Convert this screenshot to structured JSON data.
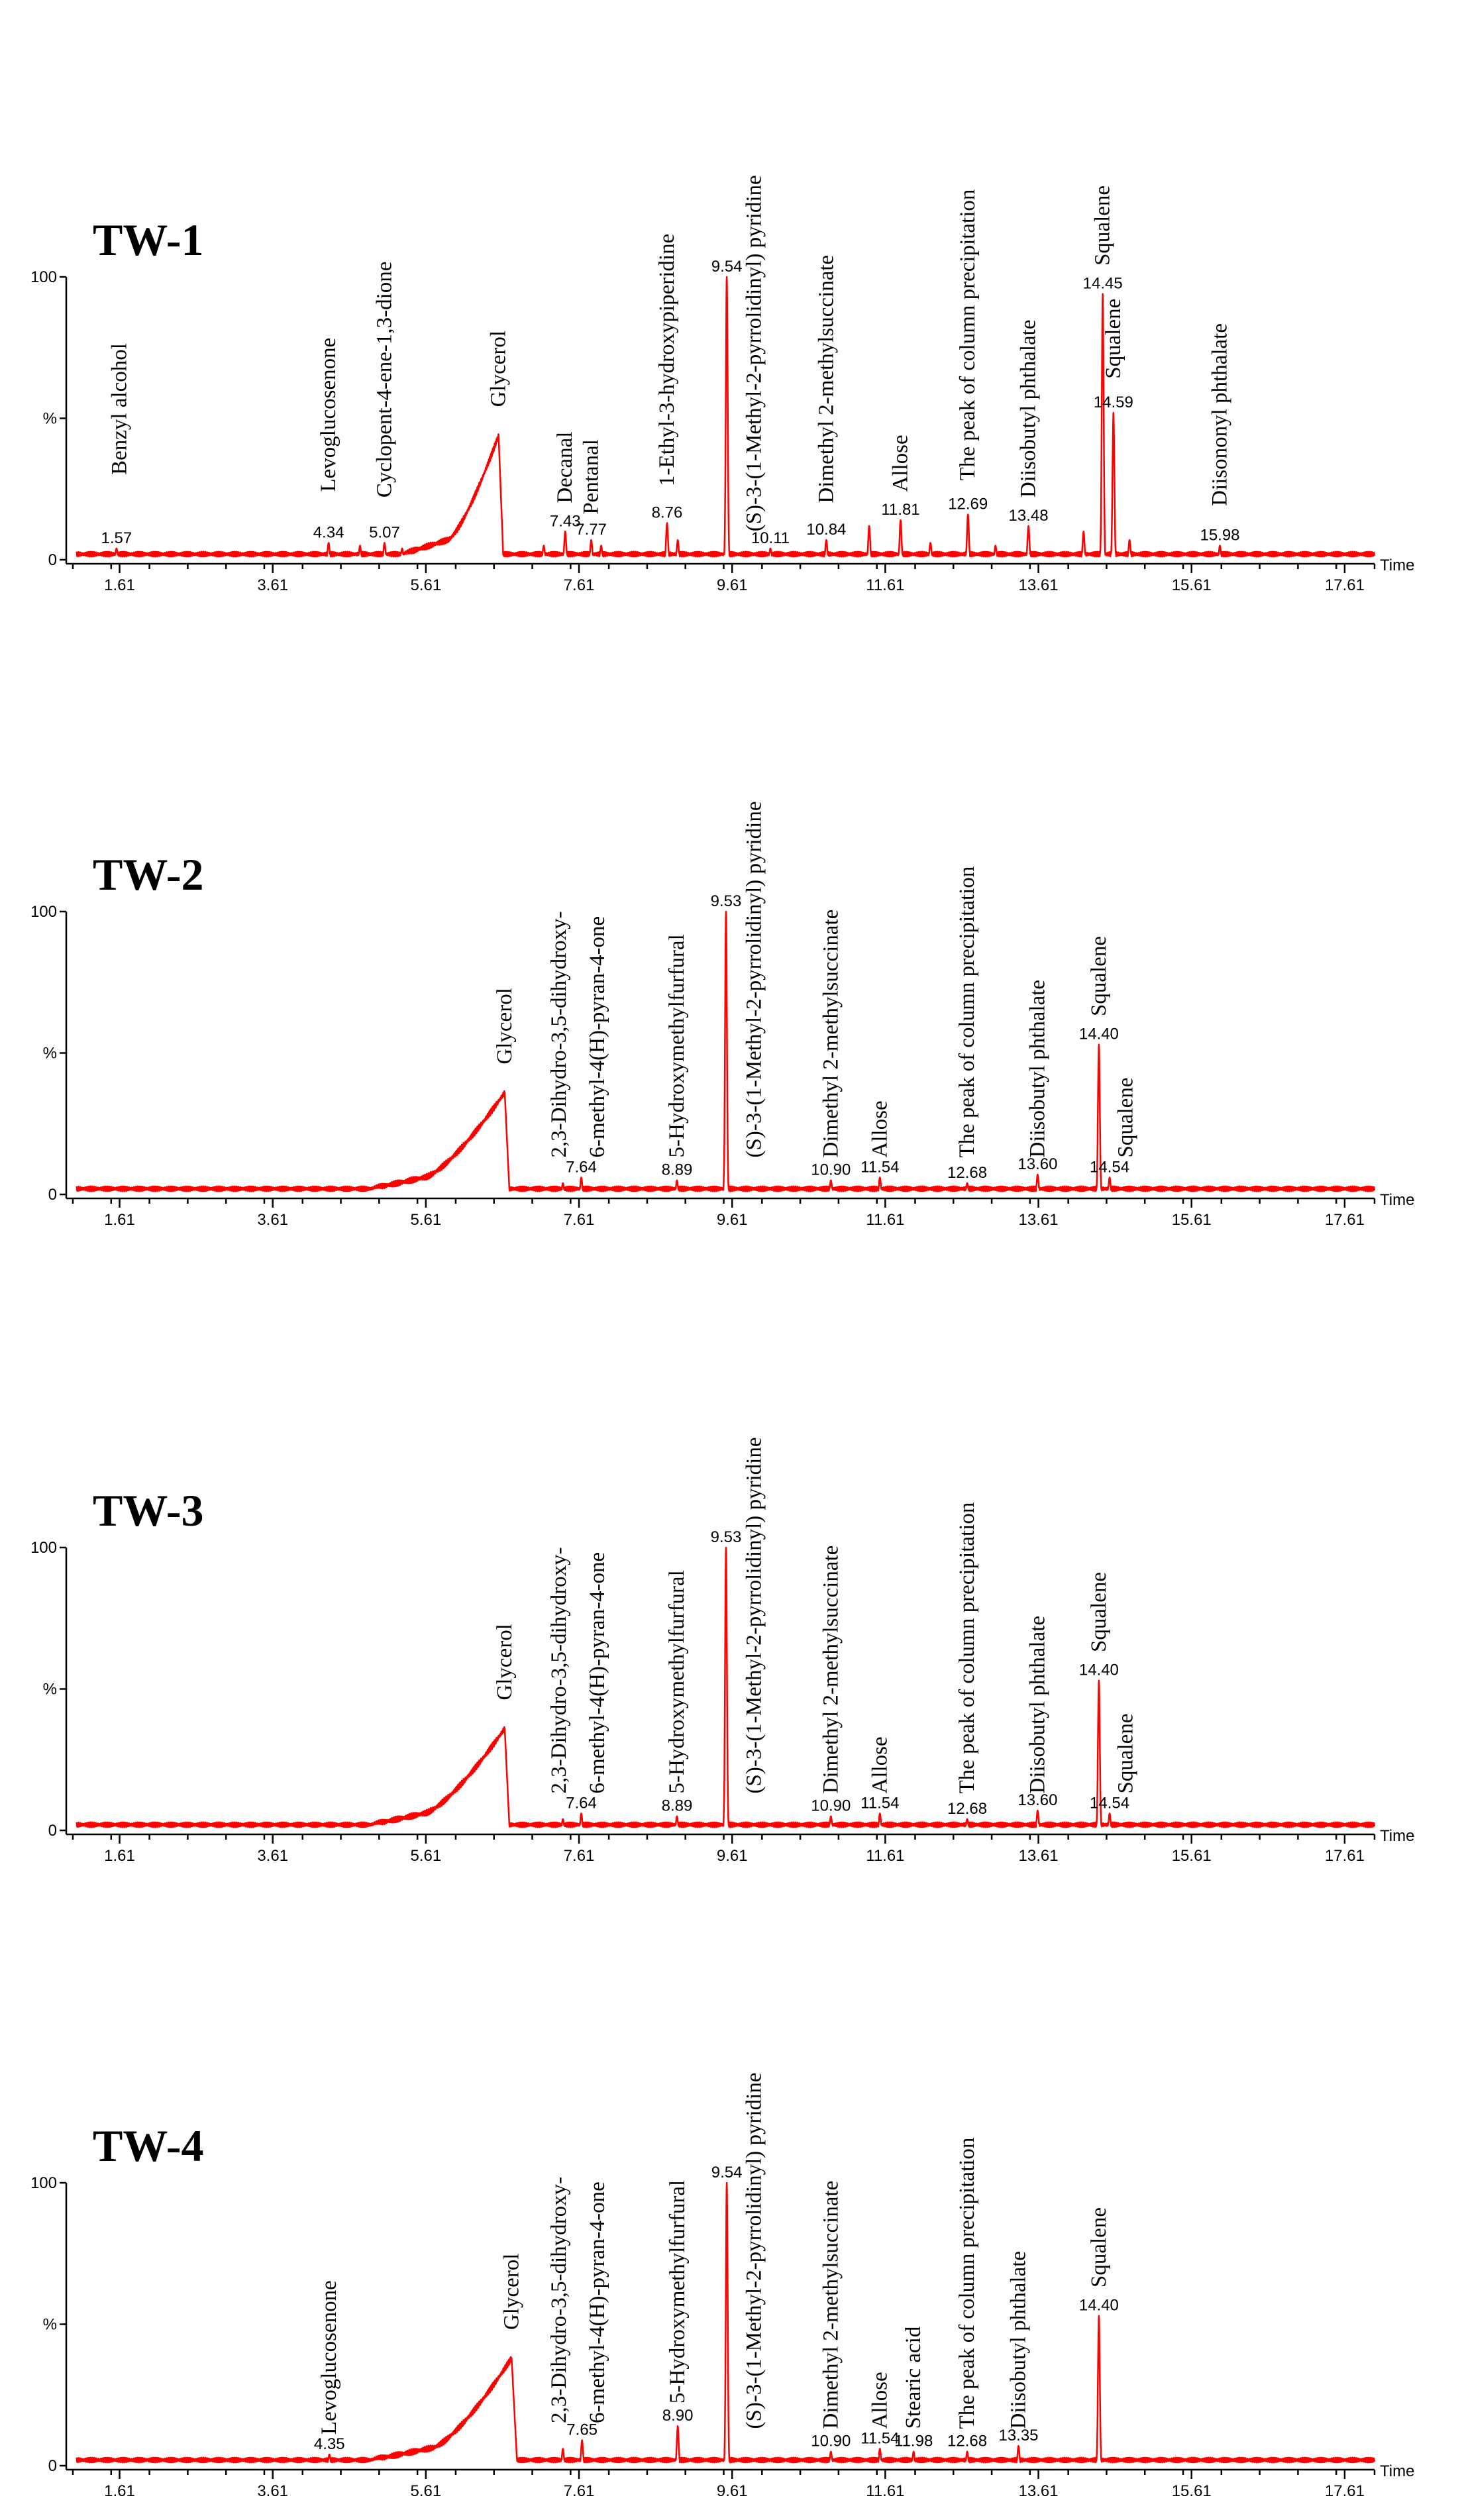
{
  "chart_data": [
    {
      "type": "line",
      "title": "TW-1",
      "xlabel": "Time",
      "xlim": [
        1.0,
        18.0
      ],
      "ylim": [
        0,
        100
      ],
      "y_tick_labels": [
        "0",
        "%",
        "100"
      ],
      "x_ticks": [
        1.61,
        3.61,
        5.61,
        7.61,
        9.61,
        11.61,
        13.61,
        15.61,
        17.61
      ],
      "x_tick_labels": [
        "1.61",
        "3.61",
        "5.61",
        "7.61",
        "9.61",
        "11.61",
        "13.61",
        "15.61",
        "17.61"
      ],
      "baseline": 2,
      "glycerol_hump": {
        "start": 5.3,
        "rise_start": 5.9,
        "peak": 6.56,
        "height": 44,
        "end": 6.62
      },
      "peaks": [
        {
          "rt": 1.57,
          "height": 4,
          "label": "1.57"
        },
        {
          "rt": 4.34,
          "height": 6,
          "label": "4.34"
        },
        {
          "rt": 4.75,
          "height": 5
        },
        {
          "rt": 5.07,
          "height": 6,
          "label": "5.07"
        },
        {
          "rt": 5.3,
          "height": 4
        },
        {
          "rt": 7.15,
          "height": 5
        },
        {
          "rt": 7.43,
          "height": 10,
          "label": "7.43"
        },
        {
          "rt": 7.77,
          "height": 7,
          "label": "7.77"
        },
        {
          "rt": 7.9,
          "height": 5
        },
        {
          "rt": 8.76,
          "height": 13,
          "label": "8.76"
        },
        {
          "rt": 8.9,
          "height": 7
        },
        {
          "rt": 9.54,
          "height": 100,
          "label": "9.54"
        },
        {
          "rt": 10.11,
          "height": 4,
          "label": "10.11"
        },
        {
          "rt": 10.84,
          "height": 7,
          "label": "10.84"
        },
        {
          "rt": 11.4,
          "height": 12
        },
        {
          "rt": 11.81,
          "height": 14,
          "label": "11.81"
        },
        {
          "rt": 12.2,
          "height": 6
        },
        {
          "rt": 12.69,
          "height": 16,
          "label": "12.69"
        },
        {
          "rt": 13.05,
          "height": 5
        },
        {
          "rt": 13.48,
          "height": 12,
          "label": "13.48"
        },
        {
          "rt": 14.2,
          "height": 10
        },
        {
          "rt": 14.45,
          "height": 94,
          "label": "14.45"
        },
        {
          "rt": 14.59,
          "height": 52,
          "label": "14.59"
        },
        {
          "rt": 14.8,
          "height": 7
        },
        {
          "rt": 15.98,
          "height": 5,
          "label": "15.98"
        }
      ],
      "annotations": [
        {
          "text": "Benzyl alcohol",
          "rt": 1.61,
          "y": 30
        },
        {
          "text": "Levoglucosenone",
          "rt": 4.34,
          "y": 24
        },
        {
          "text": "Cyclopent-4-ene-1,3-dione",
          "rt": 5.07,
          "y": 22
        },
        {
          "text": "Glycerol",
          "rt": 6.56,
          "y": 54
        },
        {
          "text": "Decanal",
          "rt": 7.43,
          "y": 20
        },
        {
          "text": "Pentanal",
          "rt": 7.77,
          "y": 16
        },
        {
          "text": "1-Ethyl-3-hydroxypiperidine",
          "rt": 8.76,
          "y": 26
        },
        {
          "text": "(S)-3-(1-Methyl-2-pyrrolidinyl) pyridine",
          "rt": 9.9,
          "y": 10
        },
        {
          "text": "Dimethyl 2-methylsuccinate",
          "rt": 10.84,
          "y": 20
        },
        {
          "text": "Allose",
          "rt": 11.81,
          "y": 24
        },
        {
          "text": "The peak of column precipitation",
          "rt": 12.69,
          "y": 28
        },
        {
          "text": "Diisobutyl phthalate",
          "rt": 13.48,
          "y": 22
        },
        {
          "text": "Squalene",
          "rt": 14.45,
          "y": 104
        },
        {
          "text": "Squalene",
          "rt": 14.59,
          "y": 64
        },
        {
          "text": "Diisononyl phthalate",
          "rt": 15.98,
          "y": 19
        }
      ]
    },
    {
      "type": "line",
      "title": "TW-2",
      "xlabel": "Time",
      "xlim": [
        1.0,
        18.0
      ],
      "ylim": [
        0,
        100
      ],
      "y_tick_labels": [
        "0",
        "%",
        "100"
      ],
      "x_ticks": [
        1.61,
        3.61,
        5.61,
        7.61,
        9.61,
        11.61,
        13.61,
        15.61,
        17.61
      ],
      "x_tick_labels": [
        "1.61",
        "3.61",
        "5.61",
        "7.61",
        "9.61",
        "11.61",
        "13.61",
        "15.61",
        "17.61"
      ],
      "baseline": 2,
      "glycerol_hump": {
        "start": 4.9,
        "rise_start": 5.6,
        "peak": 6.64,
        "height": 36,
        "end": 6.7
      },
      "peaks": [
        {
          "rt": 7.64,
          "height": 6,
          "label": "7.64"
        },
        {
          "rt": 7.4,
          "height": 4
        },
        {
          "rt": 8.89,
          "height": 5,
          "label": "8.89"
        },
        {
          "rt": 9.53,
          "height": 100,
          "label": "9.53"
        },
        {
          "rt": 10.9,
          "height": 5,
          "label": "10.90"
        },
        {
          "rt": 11.54,
          "height": 6,
          "label": "11.54"
        },
        {
          "rt": 12.68,
          "height": 4,
          "label": "12.68"
        },
        {
          "rt": 13.6,
          "height": 7,
          "label": "13.60"
        },
        {
          "rt": 14.4,
          "height": 53,
          "label": "14.40"
        },
        {
          "rt": 14.54,
          "height": 6,
          "label": "14.54"
        }
      ],
      "annotations": [
        {
          "text": "Glycerol",
          "rt": 6.64,
          "y": 46
        },
        {
          "text": "2,3-Dihydro-3,5-dihydroxy-",
          "rt": 7.35,
          "y": 13
        },
        {
          "text": "6-methyl-4(H)-pyran-4-one",
          "rt": 7.85,
          "y": 13
        },
        {
          "text": "5-Hydroxymethylfurfural",
          "rt": 8.89,
          "y": 13
        },
        {
          "text": "(S)-3-(1-Methyl-2-pyrrolidinyl) pyridine",
          "rt": 9.9,
          "y": 13
        },
        {
          "text": "Dimethyl 2-methylsuccinate",
          "rt": 10.9,
          "y": 13
        },
        {
          "text": "Allose",
          "rt": 11.54,
          "y": 13
        },
        {
          "text": "The peak of column precipitation",
          "rt": 12.68,
          "y": 13
        },
        {
          "text": "Diisobutyl phthalate",
          "rt": 13.6,
          "y": 13
        },
        {
          "text": "Squalene",
          "rt": 14.4,
          "y": 63
        },
        {
          "text": "Squalene",
          "rt": 14.75,
          "y": 13
        }
      ]
    },
    {
      "type": "line",
      "title": "TW-3",
      "xlabel": "Time",
      "xlim": [
        1.0,
        18.0
      ],
      "ylim": [
        0,
        100
      ],
      "y_tick_labels": [
        "0",
        "%",
        "100"
      ],
      "x_ticks": [
        1.61,
        3.61,
        5.61,
        7.61,
        9.61,
        11.61,
        13.61,
        15.61,
        17.61
      ],
      "x_tick_labels": [
        "1.61",
        "3.61",
        "5.61",
        "7.61",
        "9.61",
        "11.61",
        "13.61",
        "15.61",
        "17.61"
      ],
      "baseline": 2,
      "glycerol_hump": {
        "start": 4.9,
        "rise_start": 5.6,
        "peak": 6.64,
        "height": 36,
        "end": 6.7
      },
      "peaks": [
        {
          "rt": 7.64,
          "height": 6,
          "label": "7.64"
        },
        {
          "rt": 7.4,
          "height": 4
        },
        {
          "rt": 8.89,
          "height": 5,
          "label": "8.89"
        },
        {
          "rt": 9.53,
          "height": 100,
          "label": "9.53"
        },
        {
          "rt": 10.9,
          "height": 5,
          "label": "10.90"
        },
        {
          "rt": 11.54,
          "height": 6,
          "label": "11.54"
        },
        {
          "rt": 12.68,
          "height": 4,
          "label": "12.68"
        },
        {
          "rt": 13.6,
          "height": 7,
          "label": "13.60"
        },
        {
          "rt": 14.4,
          "height": 53,
          "label": "14.40"
        },
        {
          "rt": 14.54,
          "height": 6,
          "label": "14.54"
        }
      ],
      "annotations": [
        {
          "text": "Glycerol",
          "rt": 6.64,
          "y": 46
        },
        {
          "text": "2,3-Dihydro-3,5-dihydroxy-",
          "rt": 7.35,
          "y": 13
        },
        {
          "text": "6-methyl-4(H)-pyran-4-one",
          "rt": 7.85,
          "y": 13
        },
        {
          "text": "5-Hydroxymethylfurfural",
          "rt": 8.89,
          "y": 13
        },
        {
          "text": "(S)-3-(1-Methyl-2-pyrrolidinyl) pyridine",
          "rt": 9.9,
          "y": 13
        },
        {
          "text": "Dimethyl 2-methylsuccinate",
          "rt": 10.9,
          "y": 13
        },
        {
          "text": "Allose",
          "rt": 11.54,
          "y": 13
        },
        {
          "text": "The peak of column precipitation",
          "rt": 12.68,
          "y": 13
        },
        {
          "text": "Diisobutyl phthalate",
          "rt": 13.6,
          "y": 13
        },
        {
          "text": "Squalene",
          "rt": 14.4,
          "y": 63
        },
        {
          "text": "Squalene",
          "rt": 14.75,
          "y": 13
        }
      ]
    },
    {
      "type": "line",
      "title": "TW-4",
      "xlabel": "Time",
      "xlim": [
        1.0,
        18.0
      ],
      "ylim": [
        0,
        100
      ],
      "y_tick_labels": [
        "0",
        "%",
        "100"
      ],
      "x_ticks": [
        1.61,
        3.61,
        5.61,
        7.61,
        9.61,
        11.61,
        13.61,
        15.61,
        17.61
      ],
      "x_tick_labels": [
        "1.61",
        "3.61",
        "5.61",
        "7.61",
        "9.61",
        "11.61",
        "13.61",
        "15.61",
        "17.61"
      ],
      "baseline": 2,
      "glycerol_hump": {
        "start": 4.9,
        "rise_start": 5.7,
        "peak": 6.73,
        "height": 38,
        "end": 6.8
      },
      "peaks": [
        {
          "rt": 4.35,
          "height": 4,
          "label": "4.35"
        },
        {
          "rt": 7.4,
          "height": 6
        },
        {
          "rt": 7.65,
          "height": 9,
          "label": "7.65"
        },
        {
          "rt": 8.9,
          "height": 14,
          "label": "8.90"
        },
        {
          "rt": 9.54,
          "height": 100,
          "label": "9.54"
        },
        {
          "rt": 10.9,
          "height": 5,
          "label": "10.90"
        },
        {
          "rt": 11.54,
          "height": 6,
          "label": "11.54"
        },
        {
          "rt": 11.98,
          "height": 5,
          "label": "11.98"
        },
        {
          "rt": 12.68,
          "height": 5,
          "label": "12.68"
        },
        {
          "rt": 13.35,
          "height": 7,
          "label": "13.35"
        },
        {
          "rt": 14.4,
          "height": 53,
          "label": "14.40"
        }
      ],
      "annotations": [
        {
          "text": "Levoglucosenone",
          "rt": 4.35,
          "y": 11
        },
        {
          "text": "Glycerol",
          "rt": 6.73,
          "y": 48
        },
        {
          "text": "2,3-Dihydro-3,5-dihydroxy-",
          "rt": 7.35,
          "y": 15
        },
        {
          "text": "6-methyl-4(H)-pyran-4-one",
          "rt": 7.85,
          "y": 15
        },
        {
          "text": "5-Hydroxymethylfurfural",
          "rt": 8.9,
          "y": 22
        },
        {
          "text": "(S)-3-(1-Methyl-2-pyrrolidinyl) pyridine",
          "rt": 9.9,
          "y": 13
        },
        {
          "text": "Dimethyl 2-methylsuccinate",
          "rt": 10.9,
          "y": 13
        },
        {
          "text": "Allose",
          "rt": 11.54,
          "y": 13
        },
        {
          "text": "Stearic acid",
          "rt": 11.98,
          "y": 13
        },
        {
          "text": "The peak of column precipitation",
          "rt": 12.68,
          "y": 13
        },
        {
          "text": "Diisobutyl phthalate",
          "rt": 13.35,
          "y": 13
        },
        {
          "text": "Squalene",
          "rt": 14.4,
          "y": 63
        }
      ]
    }
  ]
}
